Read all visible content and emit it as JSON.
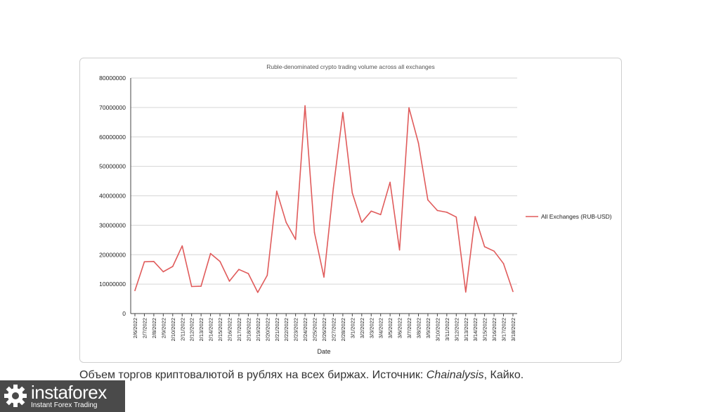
{
  "chart_data": {
    "type": "line",
    "title": "Ruble-denominated crypto trading volume across all exchanges",
    "xlabel": "Date",
    "ylabel": "",
    "ylim": [
      0,
      80000000
    ],
    "yticks": [
      "0",
      "10000000",
      "20000000",
      "30000000",
      "40000000",
      "50000000",
      "60000000",
      "70000000",
      "80000000"
    ],
    "grid": true,
    "legend_position": "right",
    "categories": [
      "2/6/2022",
      "2/7/2022",
      "2/8/2022",
      "2/9/2022",
      "2/10/2022",
      "2/11/2022",
      "2/12/2022",
      "2/13/2022",
      "2/14/2022",
      "2/15/2022",
      "2/16/2022",
      "2/17/2022",
      "2/18/2022",
      "2/19/2022",
      "2/20/2022",
      "2/21/2022",
      "2/22/2022",
      "2/23/2022",
      "2/24/2022",
      "2/25/2022",
      "2/26/2022",
      "2/27/2022",
      "2/28/2022",
      "3/1/2022",
      "3/2/2022",
      "3/3/2022",
      "3/4/2022",
      "3/5/2022",
      "3/6/2022",
      "3/7/2022",
      "3/8/2022",
      "3/9/2022",
      "3/10/2022",
      "3/11/2022",
      "3/12/2022",
      "3/13/2022",
      "3/14/2022",
      "3/15/2022",
      "3/16/2022",
      "3/17/2022",
      "3/18/2022"
    ],
    "series": [
      {
        "name": "All Exchanges (RUB-USD)",
        "color": "#e05b5b",
        "values": [
          7800000,
          17600000,
          17700000,
          14200000,
          16000000,
          23000000,
          9200000,
          9300000,
          20400000,
          17700000,
          11000000,
          15000000,
          13600000,
          7200000,
          13000000,
          41600000,
          31000000,
          25200000,
          70600000,
          27500000,
          12400000,
          42600000,
          68300000,
          41000000,
          31000000,
          34800000,
          33600000,
          44600000,
          21600000,
          69900000,
          57900000,
          38600000,
          35000000,
          34400000,
          32800000,
          7300000,
          32900000,
          22700000,
          21200000,
          17000000,
          7500000
        ]
      }
    ]
  },
  "caption": {
    "text_before": "Объем торгов криптовалютой в рублях на всех биржах.  Источник: ",
    "source_name": "Chainalysis",
    "text_after": ", Кайко."
  },
  "logo": {
    "name": "instaforex",
    "tagline": "Instant Forex Trading",
    "icon": "gear-icon"
  }
}
